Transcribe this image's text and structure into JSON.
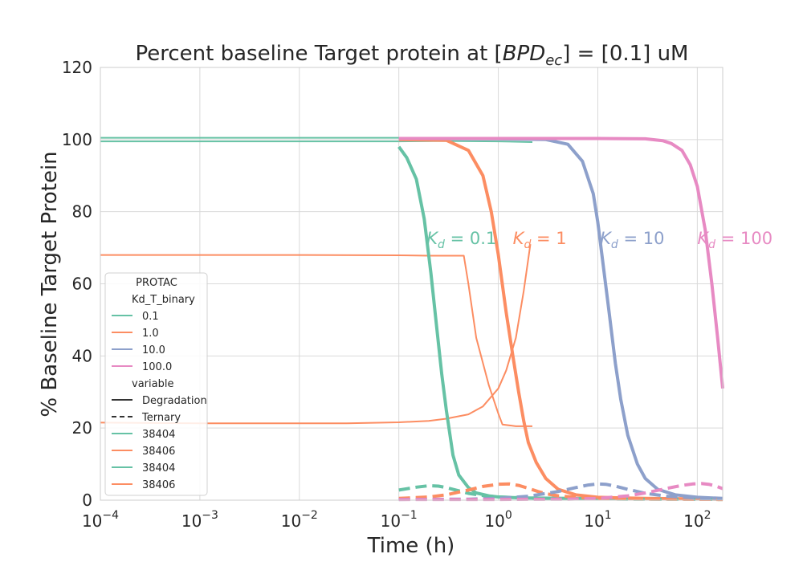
{
  "chart_data": {
    "type": "line",
    "title_prefix": "Percent baseline Target protein at [",
    "title_math": "BPD",
    "title_math_sub": "ec",
    "title_suffix": "] = [0.1] uM",
    "xlabel": "Time (h)",
    "ylabel": "% Baseline Target Protein",
    "xscale": "log",
    "xlim": [
      0.0001,
      180
    ],
    "ylim": [
      0,
      120
    ],
    "grid": true,
    "x_ticks": [
      {
        "base": "10",
        "exp": "−4",
        "value": 0.0001
      },
      {
        "base": "10",
        "exp": "−3",
        "value": 0.001
      },
      {
        "base": "10",
        "exp": "−2",
        "value": 0.01
      },
      {
        "base": "10",
        "exp": "−1",
        "value": 0.1
      },
      {
        "base": "10",
        "exp": "0",
        "value": 1
      },
      {
        "base": "10",
        "exp": "1",
        "value": 10
      },
      {
        "base": "10",
        "exp": "2",
        "value": 100
      }
    ],
    "y_ticks": [
      "0",
      "20",
      "40",
      "60",
      "80",
      "100",
      "120"
    ],
    "annotations": [
      {
        "sym": "K",
        "sub": "d",
        "text": " = 0.1",
        "color": "#66c2a5",
        "x": 0.19,
        "y": 71
      },
      {
        "sym": "K",
        "sub": "d",
        "text": " = 1",
        "color": "#fc8d62",
        "x": 1.4,
        "y": 71
      },
      {
        "sym": "K",
        "sub": "d",
        "text": " = 10",
        "color": "#8da0cb",
        "x": 10.5,
        "y": 71
      },
      {
        "sym": "K",
        "sub": "d",
        "text": " = 100",
        "color": "#e78ac3",
        "x": 100,
        "y": 71
      }
    ],
    "legend": {
      "title": "PROTAC",
      "placement": "lower-left",
      "entries": [
        {
          "kind": "header",
          "label": "Kd_T_binary"
        },
        {
          "kind": "line",
          "label": "0.1",
          "color": "#66c2a5",
          "dash": false
        },
        {
          "kind": "line",
          "label": "1.0",
          "color": "#fc8d62",
          "dash": false
        },
        {
          "kind": "line",
          "label": "10.0",
          "color": "#8da0cb",
          "dash": false
        },
        {
          "kind": "line",
          "label": "100.0",
          "color": "#e78ac3",
          "dash": false
        },
        {
          "kind": "header",
          "label": "variable"
        },
        {
          "kind": "line",
          "label": "Degradation",
          "color": "#333333",
          "dash": false
        },
        {
          "kind": "line",
          "label": "Ternary",
          "color": "#333333",
          "dash": true
        },
        {
          "kind": "line",
          "label": "38404",
          "color": "#66c2a5",
          "dash": false
        },
        {
          "kind": "line",
          "label": "38406",
          "color": "#fc8d62",
          "dash": false
        },
        {
          "kind": "line",
          "label": "38404",
          "color": "#66c2a5",
          "dash": false
        },
        {
          "kind": "line",
          "label": "38406",
          "color": "#fc8d62",
          "dash": false
        }
      ]
    },
    "series": [
      {
        "color": "#66c2a5",
        "style": "solid",
        "weight": "thin",
        "x": [
          0.0001,
          0.1
        ],
        "y": [
          99.5,
          99.5
        ]
      },
      {
        "color": "#66c2a5",
        "style": "solid",
        "weight": "thin",
        "x": [
          0.0001,
          0.1
        ],
        "y": [
          100.5,
          100.5
        ]
      },
      {
        "color": "#66c2a5",
        "style": "solid",
        "weight": "thin",
        "x": [
          0.1,
          0.3,
          1.0,
          2.2
        ],
        "y": [
          99.5,
          99.6,
          99.5,
          99.3
        ]
      },
      {
        "color": "#fc8d62",
        "style": "solid",
        "weight": "thin",
        "x": [
          0.0001,
          0.001,
          0.01,
          0.1,
          0.2,
          0.45,
          0.5,
          0.6,
          0.8,
          1.0,
          1.1,
          1.5,
          2.2
        ],
        "y": [
          68,
          68,
          68,
          67.9,
          67.8,
          67.8,
          60,
          45,
          32,
          24,
          21,
          20.5,
          20.5
        ]
      },
      {
        "color": "#fc8d62",
        "style": "solid",
        "weight": "thin",
        "x": [
          0.0001,
          0.001,
          0.01,
          0.03,
          0.1,
          0.2,
          0.3,
          0.5,
          0.7,
          1.0,
          1.2,
          1.5,
          1.8,
          2.1
        ],
        "y": [
          21.5,
          21.3,
          21.3,
          21.3,
          21.6,
          22,
          22.6,
          23.8,
          26,
          31,
          36,
          45,
          58,
          71
        ]
      },
      {
        "color": "#66c2a5",
        "style": "solid",
        "weight": "thick",
        "x": [
          0.1,
          0.12,
          0.15,
          0.18,
          0.21,
          0.24,
          0.27,
          0.3,
          0.35,
          0.4,
          0.5,
          0.6,
          0.8,
          1.0,
          1.5,
          2.0,
          5,
          20,
          180
        ],
        "y": [
          98,
          95,
          89,
          78,
          63,
          48,
          35,
          25,
          12.5,
          7,
          3.5,
          2,
          1.2,
          0.9,
          0.7,
          0.6,
          0.5,
          0.4,
          0.3
        ]
      },
      {
        "color": "#fc8d62",
        "style": "solid",
        "weight": "thick",
        "x": [
          0.1,
          0.3,
          0.5,
          0.7,
          0.85,
          1.0,
          1.2,
          1.4,
          1.6,
          1.8,
          2.0,
          2.4,
          3.0,
          4.0,
          6.0,
          10,
          30,
          180
        ],
        "y": [
          100,
          99.8,
          97,
          90,
          80,
          68,
          52,
          40,
          30,
          22,
          16,
          10.5,
          6,
          3,
          1.5,
          0.8,
          0.5,
          0.3
        ]
      },
      {
        "color": "#8da0cb",
        "style": "solid",
        "weight": "thick",
        "x": [
          0.1,
          1,
          3,
          5,
          7,
          9,
          10,
          11,
          13,
          15,
          17,
          20,
          25,
          30,
          40,
          60,
          100,
          180
        ],
        "y": [
          100.3,
          100.2,
          100,
          98.7,
          94,
          85,
          77,
          68,
          52,
          38,
          28,
          18,
          10,
          6,
          3,
          1.5,
          0.8,
          0.5
        ]
      },
      {
        "color": "#e78ac3",
        "style": "solid",
        "weight": "thick",
        "x": [
          0.1,
          1,
          10,
          30,
          45,
          55,
          70,
          85,
          100,
          120,
          140,
          160,
          180
        ],
        "y": [
          100.3,
          100.3,
          100.3,
          100.2,
          99.7,
          98.9,
          97,
          93,
          87,
          75,
          60,
          45,
          31
        ]
      },
      {
        "color": "#66c2a5",
        "style": "dashed",
        "weight": "thick",
        "x": [
          0.1,
          0.15,
          0.2,
          0.25,
          0.3,
          0.4,
          0.5,
          0.7,
          1.0,
          2,
          5,
          20,
          180
        ],
        "y": [
          2.8,
          3.6,
          4.0,
          3.9,
          3.5,
          2.6,
          1.9,
          1.3,
          0.9,
          0.6,
          0.4,
          0.3,
          0.2
        ]
      },
      {
        "color": "#fc8d62",
        "style": "dashed",
        "weight": "thick",
        "x": [
          0.1,
          0.2,
          0.3,
          0.5,
          0.7,
          1.0,
          1.3,
          1.6,
          2.0,
          2.5,
          3.0,
          4.0,
          6,
          10,
          30,
          180
        ],
        "y": [
          0.5,
          0.9,
          1.5,
          2.8,
          3.8,
          4.4,
          4.5,
          4.1,
          3.3,
          2.4,
          1.8,
          1.2,
          0.8,
          0.5,
          0.3,
          0.2
        ]
      },
      {
        "color": "#8da0cb",
        "style": "dashed",
        "weight": "thick",
        "x": [
          0.1,
          0.5,
          1,
          2,
          4,
          6,
          8,
          10,
          12,
          15,
          20,
          30,
          50,
          100,
          180
        ],
        "y": [
          0.2,
          0.3,
          0.5,
          1.1,
          2.4,
          3.5,
          4.2,
          4.5,
          4.4,
          3.9,
          3.0,
          1.9,
          1.1,
          0.6,
          0.4
        ]
      },
      {
        "color": "#e78ac3",
        "style": "dashed",
        "weight": "thick",
        "x": [
          0.1,
          1,
          5,
          10,
          20,
          30,
          50,
          70,
          90,
          110,
          130,
          150,
          180
        ],
        "y": [
          0.2,
          0.2,
          0.3,
          0.5,
          1.2,
          2.0,
          3.3,
          4.1,
          4.5,
          4.6,
          4.4,
          4.0,
          3.2
        ]
      }
    ]
  }
}
